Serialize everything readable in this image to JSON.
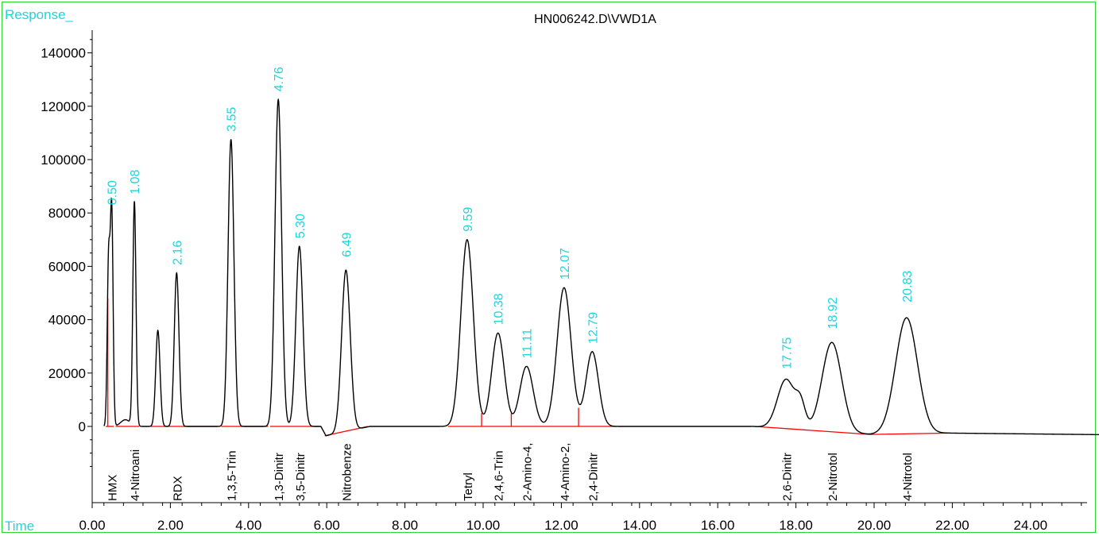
{
  "chart_data": {
    "type": "line",
    "title": "HN006242.D\\VWD1A",
    "ylabel": "Response_",
    "xlabel": "Time",
    "xlim": [
      -0.5,
      26.0
    ],
    "ylim": [
      -28000,
      150000
    ],
    "x_ticks": [
      "0.00",
      "2.00",
      "4.00",
      "6.00",
      "8.00",
      "10.00",
      "12.00",
      "14.00",
      "16.00",
      "18.00",
      "20.00",
      "22.00",
      "24.00"
    ],
    "y_ticks": [
      "0",
      "20000",
      "40000",
      "60000",
      "80000",
      "100000",
      "120000",
      "140000"
    ],
    "trace_color": "#000000",
    "baseline_color": "#ff0000",
    "label_color": "#22d3dd",
    "peaks": [
      {
        "rt": 0.42,
        "height": 62000,
        "width": 0.035
      },
      {
        "rt": 0.5,
        "height": 80000,
        "width": 0.035
      },
      {
        "rt": 0.85,
        "height": 2500,
        "width": 0.12
      },
      {
        "rt": 1.08,
        "height": 84000,
        "width": 0.04
      },
      {
        "rt": 1.68,
        "height": 36000,
        "width": 0.055
      },
      {
        "rt": 2.16,
        "height": 57500,
        "width": 0.06
      },
      {
        "rt": 3.55,
        "height": 107500,
        "width": 0.075
      },
      {
        "rt": 4.76,
        "height": 122500,
        "width": 0.085
      },
      {
        "rt": 5.3,
        "height": 67500,
        "width": 0.09
      },
      {
        "rt": 6.49,
        "height": 60500,
        "width": 0.11
      },
      {
        "rt": 9.59,
        "height": 70000,
        "width": 0.16
      },
      {
        "rt": 10.38,
        "height": 35000,
        "width": 0.16
      },
      {
        "rt": 11.11,
        "height": 22500,
        "width": 0.17
      },
      {
        "rt": 12.07,
        "height": 52000,
        "width": 0.18
      },
      {
        "rt": 12.79,
        "height": 28000,
        "width": 0.16
      },
      {
        "rt": 17.75,
        "height": 18500,
        "width": 0.22
      },
      {
        "rt": 18.12,
        "height": 8500,
        "width": 0.12
      },
      {
        "rt": 18.92,
        "height": 33500,
        "width": 0.25
      },
      {
        "rt": 20.83,
        "height": 43500,
        "width": 0.28
      }
    ],
    "baseline_segments": [
      [
        [
          0.35,
          0
        ],
        [
          0.55,
          0
        ]
      ],
      [
        [
          0.6,
          0
        ],
        [
          1.2,
          0
        ]
      ],
      [
        [
          1.5,
          0
        ],
        [
          3.2,
          0
        ]
      ],
      [
        [
          3.3,
          0
        ],
        [
          4.5,
          0
        ]
      ],
      [
        [
          4.55,
          0
        ],
        [
          5.8,
          0
        ]
      ],
      [
        [
          5.95,
          -3500
        ],
        [
          7.05,
          0
        ]
      ],
      [
        [
          9.1,
          0
        ],
        [
          13.4,
          0
        ]
      ],
      [
        [
          16.95,
          0
        ],
        [
          19.9,
          -3000
        ],
        [
          21.9,
          -2500
        ]
      ]
    ],
    "drop_lines": [
      {
        "x": 0.4,
        "top": 48000
      },
      {
        "x": 9.96,
        "top": 5000
      },
      {
        "x": 10.72,
        "top": 5000
      },
      {
        "x": 12.44,
        "top": 7000
      }
    ],
    "rt_labels": [
      {
        "text": "0.50",
        "x": 0.5,
        "y": 80000
      },
      {
        "text": "1.08",
        "x": 1.08,
        "y": 84000
      },
      {
        "text": "2.16",
        "x": 2.16,
        "y": 57500
      },
      {
        "text": "3.55",
        "x": 3.55,
        "y": 107500
      },
      {
        "text": "4.76",
        "x": 4.76,
        "y": 122500
      },
      {
        "text": "5.30",
        "x": 5.3,
        "y": 67500
      },
      {
        "text": "6.49",
        "x": 6.49,
        "y": 60500
      },
      {
        "text": "9.59",
        "x": 9.59,
        "y": 70000
      },
      {
        "text": "10.38",
        "x": 10.38,
        "y": 35000
      },
      {
        "text": "11.11",
        "x": 11.11,
        "y": 22500
      },
      {
        "text": "12.07",
        "x": 12.07,
        "y": 52000
      },
      {
        "text": "12.79",
        "x": 12.79,
        "y": 28000
      },
      {
        "text": "17.75",
        "x": 17.75,
        "y": 18500
      },
      {
        "text": "18.92",
        "x": 18.92,
        "y": 33500
      },
      {
        "text": "20.83",
        "x": 20.83,
        "y": 43500
      }
    ],
    "compound_labels": [
      {
        "text": "HMX",
        "x": 0.5
      },
      {
        "text": "4-Nitroani",
        "x": 1.08
      },
      {
        "text": "RDX",
        "x": 2.16
      },
      {
        "text": "1,3,5-Trin",
        "x": 3.55
      },
      {
        "text": "1,3-Dinitr",
        "x": 4.76
      },
      {
        "text": "3,5-Dinitr",
        "x": 5.3
      },
      {
        "text": "Nitrobenze",
        "x": 6.49
      },
      {
        "text": "Tetryl",
        "x": 9.59
      },
      {
        "text": "2,4,6-Trin",
        "x": 10.38
      },
      {
        "text": "2-Amino-4,",
        "x": 11.11
      },
      {
        "text": "4-Amino-2,",
        "x": 12.07
      },
      {
        "text": "2,4-Dinitr",
        "x": 12.79
      },
      {
        "text": "2,6-Dinitr",
        "x": 17.75
      },
      {
        "text": "2-Nitrotol",
        "x": 18.92
      },
      {
        "text": "4-Nitrotol",
        "x": 20.83
      }
    ]
  }
}
